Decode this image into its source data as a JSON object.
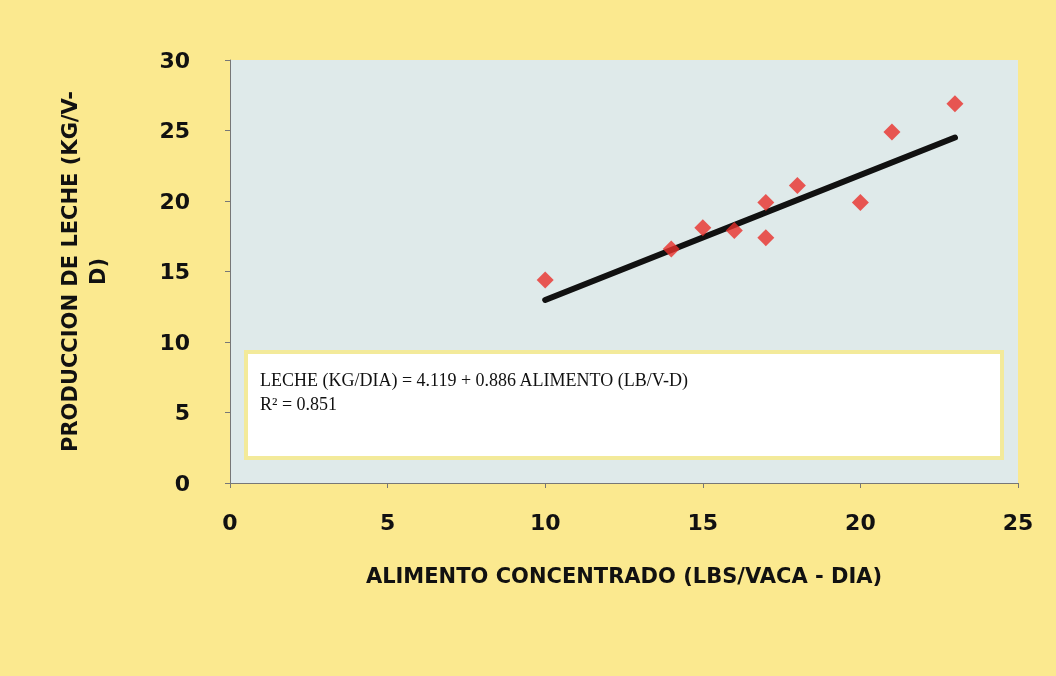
{
  "chart_data": {
    "type": "scatter",
    "xlabel": "ALIMENTO CONCENTRADO (LBS/VACA - DIA)",
    "ylabel": "PRODUCCION DE LECHE (KG/V-D)",
    "xlim": [
      0,
      25
    ],
    "xticks": [
      0,
      5,
      10,
      15,
      20,
      25
    ],
    "ylim": [
      0,
      30
    ],
    "yticks": [
      0,
      5,
      10,
      15,
      20,
      25,
      30
    ],
    "grid": false,
    "marker": "diamond",
    "annotations": [
      "LECHE (KG/DIA) = 4.119 + 0.886 ALIMENTO (LB/V-D)",
      "R² = 0.851"
    ],
    "series": [
      {
        "color": "#e8302a",
        "x": [
          10,
          14,
          15,
          16,
          17,
          17,
          18,
          20,
          21,
          23
        ],
        "values": [
          14.4,
          16.6,
          18.1,
          17.9,
          19.9,
          17.4,
          21.1,
          19.9,
          24.9,
          26.9
        ]
      },
      {
        "type": "line",
        "color": "#111111",
        "marker": "none",
        "x": [
          10,
          23
        ],
        "values": [
          12.98,
          24.5
        ]
      }
    ]
  }
}
